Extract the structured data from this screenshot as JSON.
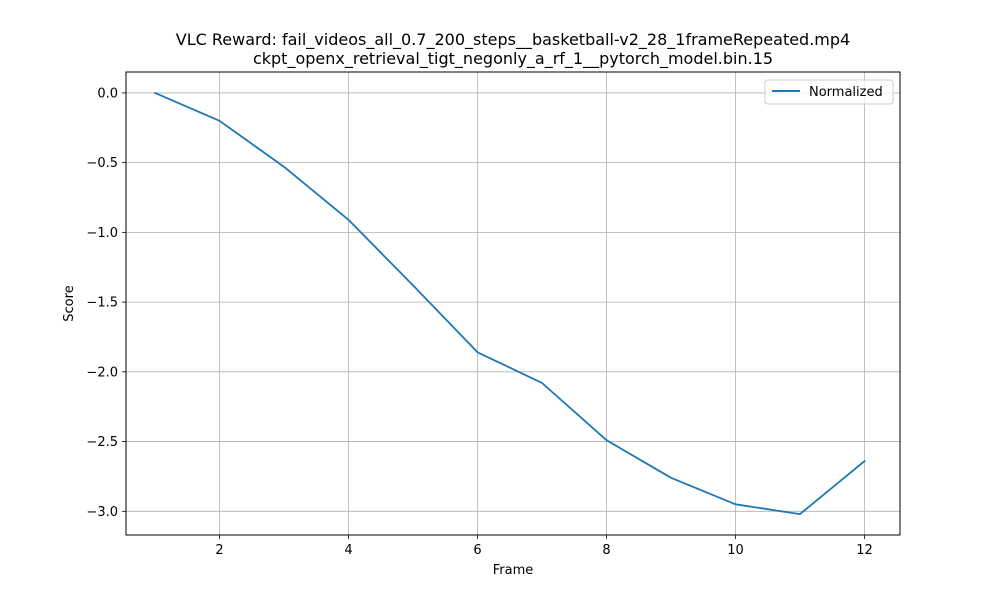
{
  "chart_data": {
    "type": "line",
    "title": "VLC Reward: fail_videos_all_0.7_200_steps__basketball-v2_28_1frameRepeated.mp4",
    "subtitle": "ckpt_openx_retrieval_tigt_negonly_a_rf_1__pytorch_model.bin.15",
    "xlabel": "Frame",
    "ylabel": "Score",
    "x": [
      1,
      2,
      3,
      4,
      5,
      6,
      7,
      8,
      9,
      10,
      11,
      12
    ],
    "series": [
      {
        "name": "Normalized",
        "color": "#1f77b4",
        "values": [
          0.0,
          -0.2,
          -0.53,
          -0.91,
          -1.38,
          -1.86,
          -2.08,
          -2.49,
          -2.76,
          -2.95,
          -3.02,
          -2.64
        ]
      }
    ],
    "xlim": [
      0.55,
      12.55
    ],
    "ylim": [
      -3.17,
      0.15
    ],
    "xticks": [
      2,
      4,
      6,
      8,
      10,
      12
    ],
    "xtick_labels": [
      "2",
      "4",
      "6",
      "8",
      "10",
      "12"
    ],
    "yticks": [
      0.0,
      -0.5,
      -1.0,
      -1.5,
      -2.0,
      -2.5,
      -3.0
    ],
    "ytick_labels": [
      "0.0",
      "−0.5",
      "−1.0",
      "−1.5",
      "−2.0",
      "−2.5",
      "−3.0"
    ],
    "grid": true,
    "legend_position": "top-right"
  }
}
